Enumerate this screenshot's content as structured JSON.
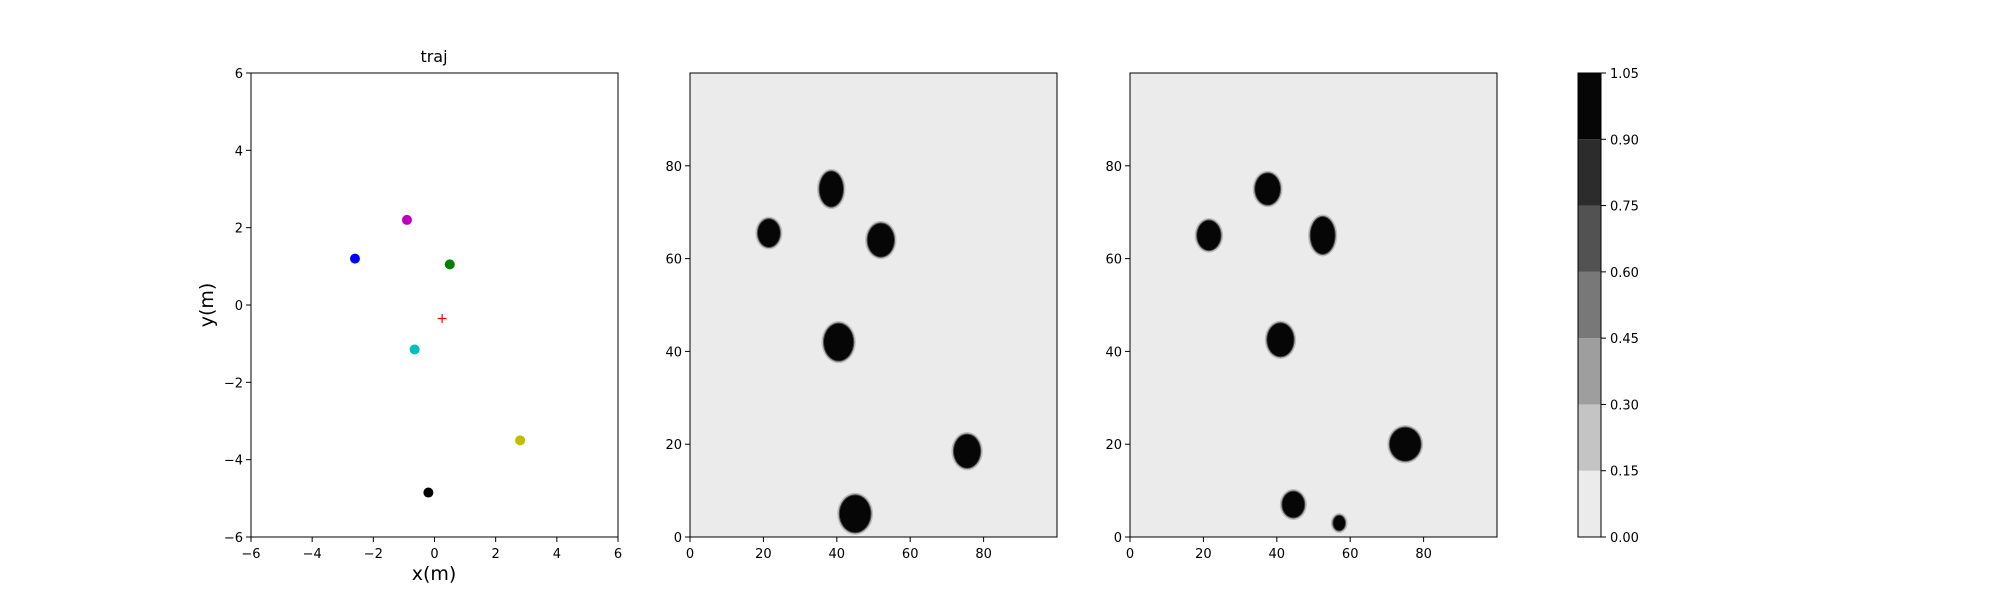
{
  "chart_data": [
    {
      "type": "scatter",
      "title": "traj",
      "xlabel": "x(m)",
      "ylabel": "y(m)",
      "xlim": [
        -6,
        6
      ],
      "ylim": [
        -6,
        6
      ],
      "xticks": [
        -6,
        -4,
        -2,
        0,
        2,
        4,
        6
      ],
      "yticks": [
        -6,
        -4,
        -2,
        0,
        2,
        4,
        6
      ],
      "grid": false,
      "points": [
        {
          "x": -0.9,
          "y": 2.2,
          "color": "#bf00bf",
          "marker": "o"
        },
        {
          "x": -2.6,
          "y": 1.2,
          "color": "#0000ff",
          "marker": "o"
        },
        {
          "x": 0.5,
          "y": 1.05,
          "color": "#008000",
          "marker": "o"
        },
        {
          "x": -0.65,
          "y": -1.15,
          "color": "#00bfbf",
          "marker": "o"
        },
        {
          "x": 2.8,
          "y": -3.5,
          "color": "#bfbf00",
          "marker": "o"
        },
        {
          "x": -0.2,
          "y": -4.85,
          "color": "#000000",
          "marker": "o"
        },
        {
          "x": 0.25,
          "y": -0.35,
          "color": "#ff0000",
          "marker": "+"
        }
      ]
    },
    {
      "type": "heatmap",
      "xlim": [
        0,
        100
      ],
      "ylim": [
        0,
        100
      ],
      "xticks": [
        0,
        20,
        40,
        60,
        80
      ],
      "yticks": [
        0,
        20,
        40,
        60,
        80
      ],
      "background_value": 0.05,
      "blobs": [
        {
          "x": 38.5,
          "y": 75,
          "rx": 3.2,
          "ry": 3.8
        },
        {
          "x": 21.5,
          "y": 65.5,
          "rx": 3.0,
          "ry": 3.0
        },
        {
          "x": 52,
          "y": 64,
          "rx": 3.6,
          "ry": 3.6
        },
        {
          "x": 40.5,
          "y": 42,
          "rx": 4.0,
          "ry": 4.0
        },
        {
          "x": 75.5,
          "y": 18.5,
          "rx": 3.6,
          "ry": 3.6
        },
        {
          "x": 45,
          "y": 5,
          "rx": 4.2,
          "ry": 4.0
        }
      ]
    },
    {
      "type": "heatmap",
      "xlim": [
        0,
        100
      ],
      "ylim": [
        0,
        100
      ],
      "xticks": [
        0,
        20,
        40,
        60,
        80
      ],
      "yticks": [
        0,
        20,
        40,
        60,
        80
      ],
      "background_value": 0.05,
      "blobs": [
        {
          "x": 37.5,
          "y": 75,
          "rx": 3.4,
          "ry": 3.4
        },
        {
          "x": 21.5,
          "y": 65,
          "rx": 3.2,
          "ry": 3.2
        },
        {
          "x": 52.5,
          "y": 65,
          "rx": 3.3,
          "ry": 4.0
        },
        {
          "x": 41,
          "y": 42.5,
          "rx": 3.6,
          "ry": 3.6
        },
        {
          "x": 75,
          "y": 20,
          "rx": 4.2,
          "ry": 3.6
        },
        {
          "x": 44.5,
          "y": 7,
          "rx": 3.0,
          "ry": 2.8
        },
        {
          "x": 57,
          "y": 3,
          "rx": 1.6,
          "ry": 1.6
        }
      ]
    },
    {
      "type": "colorbar",
      "levels": [
        0.0,
        0.15,
        0.3,
        0.45,
        0.6,
        0.75,
        0.9,
        1.05
      ],
      "tick_labels": [
        "0.00",
        "0.15",
        "0.30",
        "0.45",
        "0.60",
        "0.75",
        "0.90",
        "1.05"
      ],
      "colors": [
        "#ebebeb",
        "#c4c4c4",
        "#9e9e9e",
        "#787878",
        "#525252",
        "#2c2c2c",
        "#060606"
      ]
    }
  ]
}
